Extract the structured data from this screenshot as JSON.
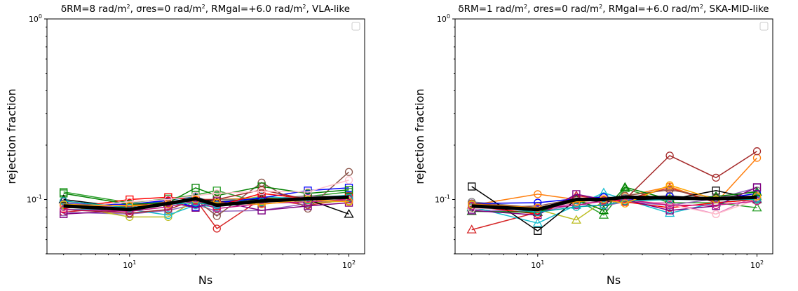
{
  "chart_data": [
    {
      "type": "line",
      "title": "δRM=8 rad/m², σres=0 rad/m², RMgal=+6.0 rad/m², VLA-like",
      "title_parts": {
        "pre": "δRM=8 rad/m",
        "mid1": ", σres=0 rad/m",
        "mid2": ", RMgal=+6.0 rad/m",
        "post": ", VLA-like",
        "sup": "2"
      },
      "xlabel": "Ns",
      "ylabel": "rejection fraction",
      "xscale": "log",
      "yscale": "log",
      "xlim": [
        4.2,
        118
      ],
      "ylim": [
        0.05,
        1.0
      ],
      "x_tick_labels": [
        {
          "base": "10",
          "exp": "1"
        },
        {
          "base": "10",
          "exp": "2"
        }
      ],
      "y_tick_labels": [
        {
          "base": "10",
          "exp": "0"
        },
        {
          "base": "10",
          "exp": "-1"
        }
      ],
      "legend": "top-right (empty)",
      "x": [
        5,
        10,
        15,
        20,
        25,
        40,
        65,
        100
      ],
      "mean_series": [
        0.092,
        0.088,
        0.095,
        0.101,
        0.093,
        0.098,
        0.101,
        0.103
      ],
      "series": [
        {
          "color": "#1f77b4",
          "marker": "o",
          "values": [
            0.095,
            0.091,
            0.099,
            0.104,
            0.094,
            0.1,
            0.103,
            0.105
          ]
        },
        {
          "color": "#ff7f0e",
          "marker": "o",
          "values": [
            0.09,
            0.093,
            0.096,
            0.1,
            0.1,
            0.102,
            0.1,
            0.104
          ]
        },
        {
          "color": "#2ca02c",
          "marker": "s",
          "values": [
            0.11,
            0.096,
            0.101,
            0.106,
            0.112,
            0.096,
            0.104,
            0.11
          ]
        },
        {
          "color": "#d62728",
          "marker": "o",
          "values": [
            0.085,
            0.092,
            0.097,
            0.1,
            0.069,
            0.101,
            0.093,
            0.1
          ]
        },
        {
          "color": "#9467bd",
          "marker": "s",
          "values": [
            0.085,
            0.083,
            0.087,
            0.094,
            0.086,
            0.087,
            0.095,
            0.1
          ]
        },
        {
          "color": "#8c564b",
          "marker": "o",
          "values": [
            0.093,
            0.087,
            0.094,
            0.1,
            0.081,
            0.124,
            0.089,
            0.142
          ]
        },
        {
          "color": "#e377c2",
          "marker": "o",
          "values": [
            0.097,
            0.089,
            0.093,
            0.101,
            0.096,
            0.099,
            0.104,
            0.1
          ]
        },
        {
          "color": "#7f7f7f",
          "marker": "o",
          "values": [
            0.091,
            0.088,
            0.096,
            0.099,
            0.1,
            0.1,
            0.105,
            0.103
          ]
        },
        {
          "color": "#bcbd22",
          "marker": "o",
          "values": [
            0.093,
            0.08,
            0.08,
            0.099,
            0.096,
            0.104,
            0.096,
            0.098
          ]
        },
        {
          "color": "#17becf",
          "marker": "o",
          "values": [
            0.088,
            0.088,
            0.082,
            0.093,
            0.091,
            0.104,
            0.1,
            0.106
          ]
        },
        {
          "color": "#000000",
          "marker": "^",
          "values": [
            0.1,
            0.09,
            0.095,
            0.102,
            0.097,
            0.101,
            0.1,
            0.083
          ]
        },
        {
          "color": "#0000ff",
          "marker": "s",
          "values": [
            0.094,
            0.094,
            0.099,
            0.091,
            0.096,
            0.102,
            0.112,
            0.116
          ]
        },
        {
          "color": "#ff0000",
          "marker": "s",
          "values": [
            0.089,
            0.1,
            0.103,
            0.099,
            0.092,
            0.108,
            0.101,
            0.104
          ]
        },
        {
          "color": "#008000",
          "marker": "s",
          "values": [
            0.108,
            0.094,
            0.096,
            0.116,
            0.105,
            0.118,
            0.108,
            0.113
          ]
        },
        {
          "color": "#800080",
          "marker": "s",
          "values": [
            0.083,
            0.087,
            0.097,
            0.09,
            0.098,
            0.087,
            0.092,
            0.096
          ]
        },
        {
          "color": "#a52a2a",
          "marker": "o",
          "values": [
            0.088,
            0.084,
            0.088,
            0.1,
            0.1,
            0.113,
            0.1,
            0.101
          ]
        },
        {
          "color": "#ffc0cb",
          "marker": "o",
          "values": [
            0.09,
            0.097,
            0.1,
            0.105,
            0.108,
            0.111,
            0.11,
            0.128
          ]
        },
        {
          "color": "#c71585",
          "marker": "o",
          "values": [
            0.088,
            0.086,
            0.091,
            0.098,
            0.089,
            0.095,
            0.097,
            0.1
          ]
        },
        {
          "color": "#00aaaa",
          "marker": "o",
          "values": [
            0.098,
            0.09,
            0.094,
            0.096,
            0.093,
            0.097,
            0.099,
            0.102
          ]
        },
        {
          "color": "#ffa500",
          "marker": "o",
          "values": [
            0.094,
            0.092,
            0.094,
            0.1,
            0.096,
            0.094,
            0.1,
            0.097
          ]
        }
      ]
    },
    {
      "type": "line",
      "title": "δRM=1 rad/m², σres=0 rad/m², RMgal=+6.0 rad/m², SKA-MID-like",
      "title_parts": {
        "pre": "δRM=1 rad/m",
        "mid1": ", σres=0 rad/m",
        "mid2": ", RMgal=+6.0 rad/m",
        "post": ", SKA-MID-like",
        "sup": "2"
      },
      "xlabel": "Ns",
      "ylabel": "rejection fraction",
      "xscale": "log",
      "yscale": "log",
      "xlim": [
        4.2,
        118
      ],
      "ylim": [
        0.05,
        1.0
      ],
      "x_tick_labels": [
        {
          "base": "10",
          "exp": "1"
        },
        {
          "base": "10",
          "exp": "2"
        }
      ],
      "y_tick_labels": [
        {
          "base": "10",
          "exp": "0"
        },
        {
          "base": "10",
          "exp": "-1"
        }
      ],
      "legend": "top-right (empty)",
      "x": [
        5,
        10,
        15,
        20,
        25,
        40,
        65,
        100
      ],
      "mean_series": [
        0.092,
        0.088,
        0.1,
        0.1,
        0.103,
        0.102,
        0.101,
        0.103
      ],
      "series": [
        {
          "color": "#1f77b4",
          "marker": "o",
          "values": [
            0.095,
            0.09,
            0.1,
            0.104,
            0.1,
            0.104,
            0.1,
            0.102
          ]
        },
        {
          "color": "#ff7f0e",
          "marker": "o",
          "values": [
            0.093,
            0.107,
            0.1,
            0.1,
            0.104,
            0.118,
            0.096,
            0.17
          ]
        },
        {
          "color": "#2ca02c",
          "marker": "^",
          "values": [
            0.09,
            0.088,
            0.1,
            0.082,
            0.115,
            0.096,
            0.096,
            0.09
          ]
        },
        {
          "color": "#d62728",
          "marker": "^",
          "values": [
            0.068,
            0.085,
            0.105,
            0.1,
            0.1,
            0.116,
            0.096,
            0.1
          ]
        },
        {
          "color": "#9467bd",
          "marker": "s",
          "values": [
            0.088,
            0.085,
            0.094,
            0.092,
            0.097,
            0.093,
            0.101,
            0.116
          ]
        },
        {
          "color": "#8c564b",
          "marker": "o",
          "values": [
            0.09,
            0.092,
            0.101,
            0.1,
            0.105,
            0.113,
            0.102,
            0.1
          ]
        },
        {
          "color": "#e377c2",
          "marker": "o",
          "values": [
            0.09,
            0.087,
            0.096,
            0.097,
            0.097,
            0.096,
            0.083,
            0.105
          ]
        },
        {
          "color": "#7f7f7f",
          "marker": "o",
          "values": [
            0.097,
            0.09,
            0.1,
            0.1,
            0.102,
            0.105,
            0.1,
            0.112
          ]
        },
        {
          "color": "#bcbd22",
          "marker": "^",
          "values": [
            0.093,
            0.088,
            0.077,
            0.098,
            0.1,
            0.102,
            0.1,
            0.104
          ]
        },
        {
          "color": "#17becf",
          "marker": "^",
          "values": [
            0.091,
            0.074,
            0.093,
            0.109,
            0.1,
            0.084,
            0.096,
            0.101
          ]
        },
        {
          "color": "#000000",
          "marker": "s",
          "values": [
            0.118,
            0.067,
            0.1,
            0.097,
            0.1,
            0.1,
            0.112,
            0.1
          ]
        },
        {
          "color": "#0000ff",
          "marker": "o",
          "values": [
            0.095,
            0.096,
            0.101,
            0.103,
            0.1,
            0.104,
            0.1,
            0.108
          ]
        },
        {
          "color": "#ff0000",
          "marker": "o",
          "values": [
            0.092,
            0.083,
            0.102,
            0.101,
            0.097,
            0.09,
            0.096,
            0.1
          ]
        },
        {
          "color": "#008000",
          "marker": "^",
          "values": [
            0.086,
            0.085,
            0.1,
            0.087,
            0.117,
            0.1,
            0.104,
            0.11
          ]
        },
        {
          "color": "#800080",
          "marker": "s",
          "values": [
            0.087,
            0.082,
            0.107,
            0.1,
            0.1,
            0.087,
            0.092,
            0.117
          ]
        },
        {
          "color": "#a52a2a",
          "marker": "o",
          "values": [
            0.095,
            0.09,
            0.1,
            0.099,
            0.1,
            0.175,
            0.132,
            0.185
          ]
        },
        {
          "color": "#ffc0cb",
          "marker": "o",
          "values": [
            0.089,
            0.09,
            0.098,
            0.101,
            0.1,
            0.094,
            0.083,
            0.1
          ]
        },
        {
          "color": "#c71585",
          "marker": "o",
          "values": [
            0.092,
            0.089,
            0.093,
            0.098,
            0.1,
            0.093,
            0.093,
            0.098
          ]
        },
        {
          "color": "#00aaaa",
          "marker": "o",
          "values": [
            0.094,
            0.085,
            0.091,
            0.093,
            0.098,
            0.1,
            0.1,
            0.1
          ]
        },
        {
          "color": "#ffa500",
          "marker": "o",
          "values": [
            0.094,
            0.09,
            0.097,
            0.1,
            0.095,
            0.12,
            0.1,
            0.104
          ]
        }
      ]
    }
  ]
}
